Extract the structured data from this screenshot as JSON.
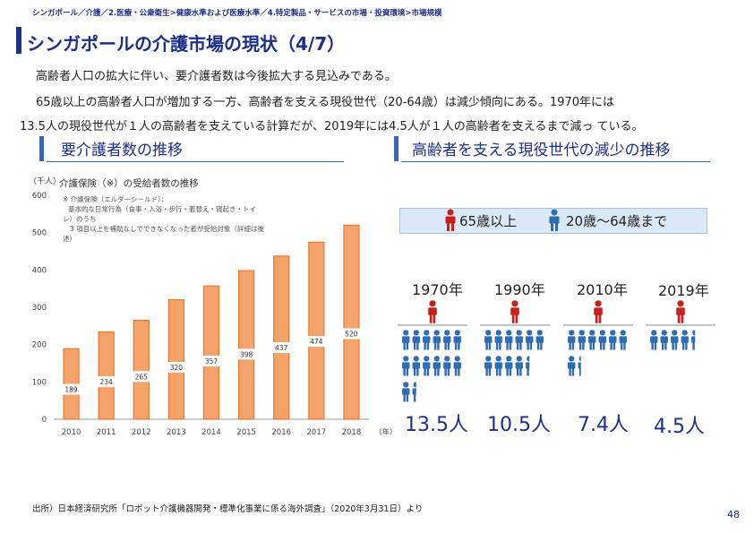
{
  "breadcrumb": "シンガポール／介護／2.医療・公衆衛生>健康水準および医療水準／4.特定製品・サービスの市場・投資環境>市場規模",
  "page_title": "シンガポールの介護市場の現状（4/7）",
  "body": {
    "line1": "高齢者人口の拡大に伴い、要介護者数は今後拡大する見込みである。",
    "line2": "65歳以上の高齢者人口が増加する一方、高齢者を支える現役世代（20-64歳）は減少傾向にある。1970年には",
    "line3": "13.5人の現役世代が１人の高齢者を支えている計算だが、2019年には4.5人が１人の高齢者を支えるまで減っ ている。"
  },
  "left_section": {
    "title": "要介護者数の推移"
  },
  "right_section": {
    "title": "高齢者を支える現役世代の減少の推移"
  },
  "chart_data": {
    "type": "bar",
    "title": "介護保険（※）の受給者数の推移",
    "ylabel": "（千人）",
    "xlabel": "（年）",
    "categories": [
      "2010",
      "2011",
      "2012",
      "2013",
      "2014",
      "2015",
      "2016",
      "2017",
      "2018"
    ],
    "values": [
      189,
      234,
      265,
      320,
      357,
      398,
      437,
      474,
      520
    ],
    "ylim": [
      0,
      600
    ],
    "yticks": [
      0,
      100,
      200,
      300,
      400,
      500,
      600
    ],
    "bar_color": "#f4a46a",
    "bar_edge_color": "#e8772e",
    "grid": false,
    "note": [
      "※ 介護保険（エルダーシールド）：",
      "基本的な日常行為（食事・入浴・歩行・着替え・寝起き・トイ",
      "レ）のうち",
      "3 項目以上を補助なしでできなくなった者が受給対象（詳細は後",
      "述）"
    ]
  },
  "legend": {
    "elderly_label": "65歳以上",
    "working_label": "20歳〜64歳まで",
    "elderly_color": "#c8201f",
    "working_color": "#2f6cb4"
  },
  "support_ratio": [
    {
      "year": "1970年",
      "ratio": 13.5,
      "label": "13.5人"
    },
    {
      "year": "1990年",
      "ratio": 10.5,
      "label": "10.5人"
    },
    {
      "year": "2010年",
      "ratio": 7.4,
      "label": "7.4人"
    },
    {
      "year": "2019年",
      "ratio": 4.5,
      "label": "4.5人"
    }
  ],
  "source": "出所）日本経済研究所「ロボット介護機器開発・標準化事業に係る海外調査」（2020年3月31日）より",
  "page_number": "48"
}
